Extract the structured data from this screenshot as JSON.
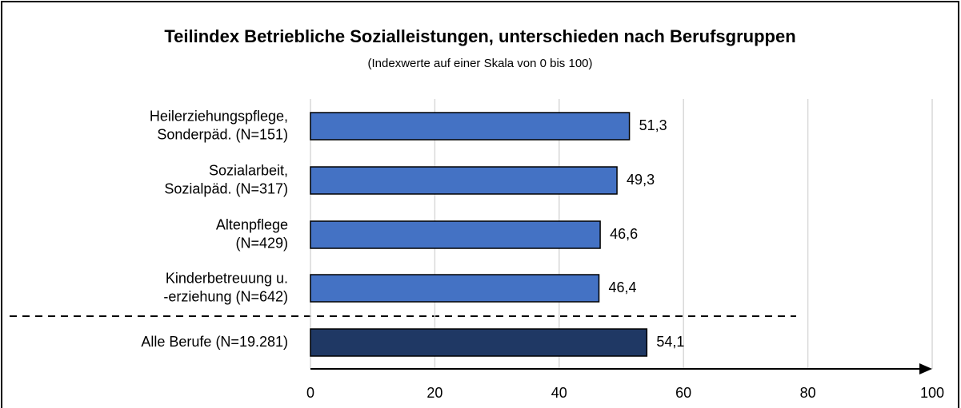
{
  "chart_data": {
    "type": "bar",
    "orientation": "horizontal",
    "title": "Teilindex Betriebliche Sozialleistungen, unterschieden nach Berufsgruppen",
    "subtitle": "(Indexwerte  auf einer Skala von 0 bis 100)",
    "categories": [
      [
        "Heilerziehungspflege,",
        "Sonderpäd. (N=151)"
      ],
      [
        "Sozialarbeit,",
        "Sozialpäd. (N=317)"
      ],
      [
        "Altenpflege",
        "(N=429)"
      ],
      [
        "Kinderbetreuung u.",
        "-erziehung (N=642)"
      ],
      [
        "Alle Berufe (N=19.281)"
      ]
    ],
    "values": [
      51.3,
      49.3,
      46.6,
      46.4,
      54.1
    ],
    "value_labels": [
      "51,3",
      "49,3",
      "46,6",
      "46,4",
      "54,1"
    ],
    "colors": [
      "#4472c4",
      "#4472c4",
      "#4472c4",
      "#4472c4",
      "#1f3864"
    ],
    "xlim": [
      0,
      100
    ],
    "xticks": [
      0,
      20,
      40,
      60,
      80,
      100
    ],
    "grid": true
  }
}
